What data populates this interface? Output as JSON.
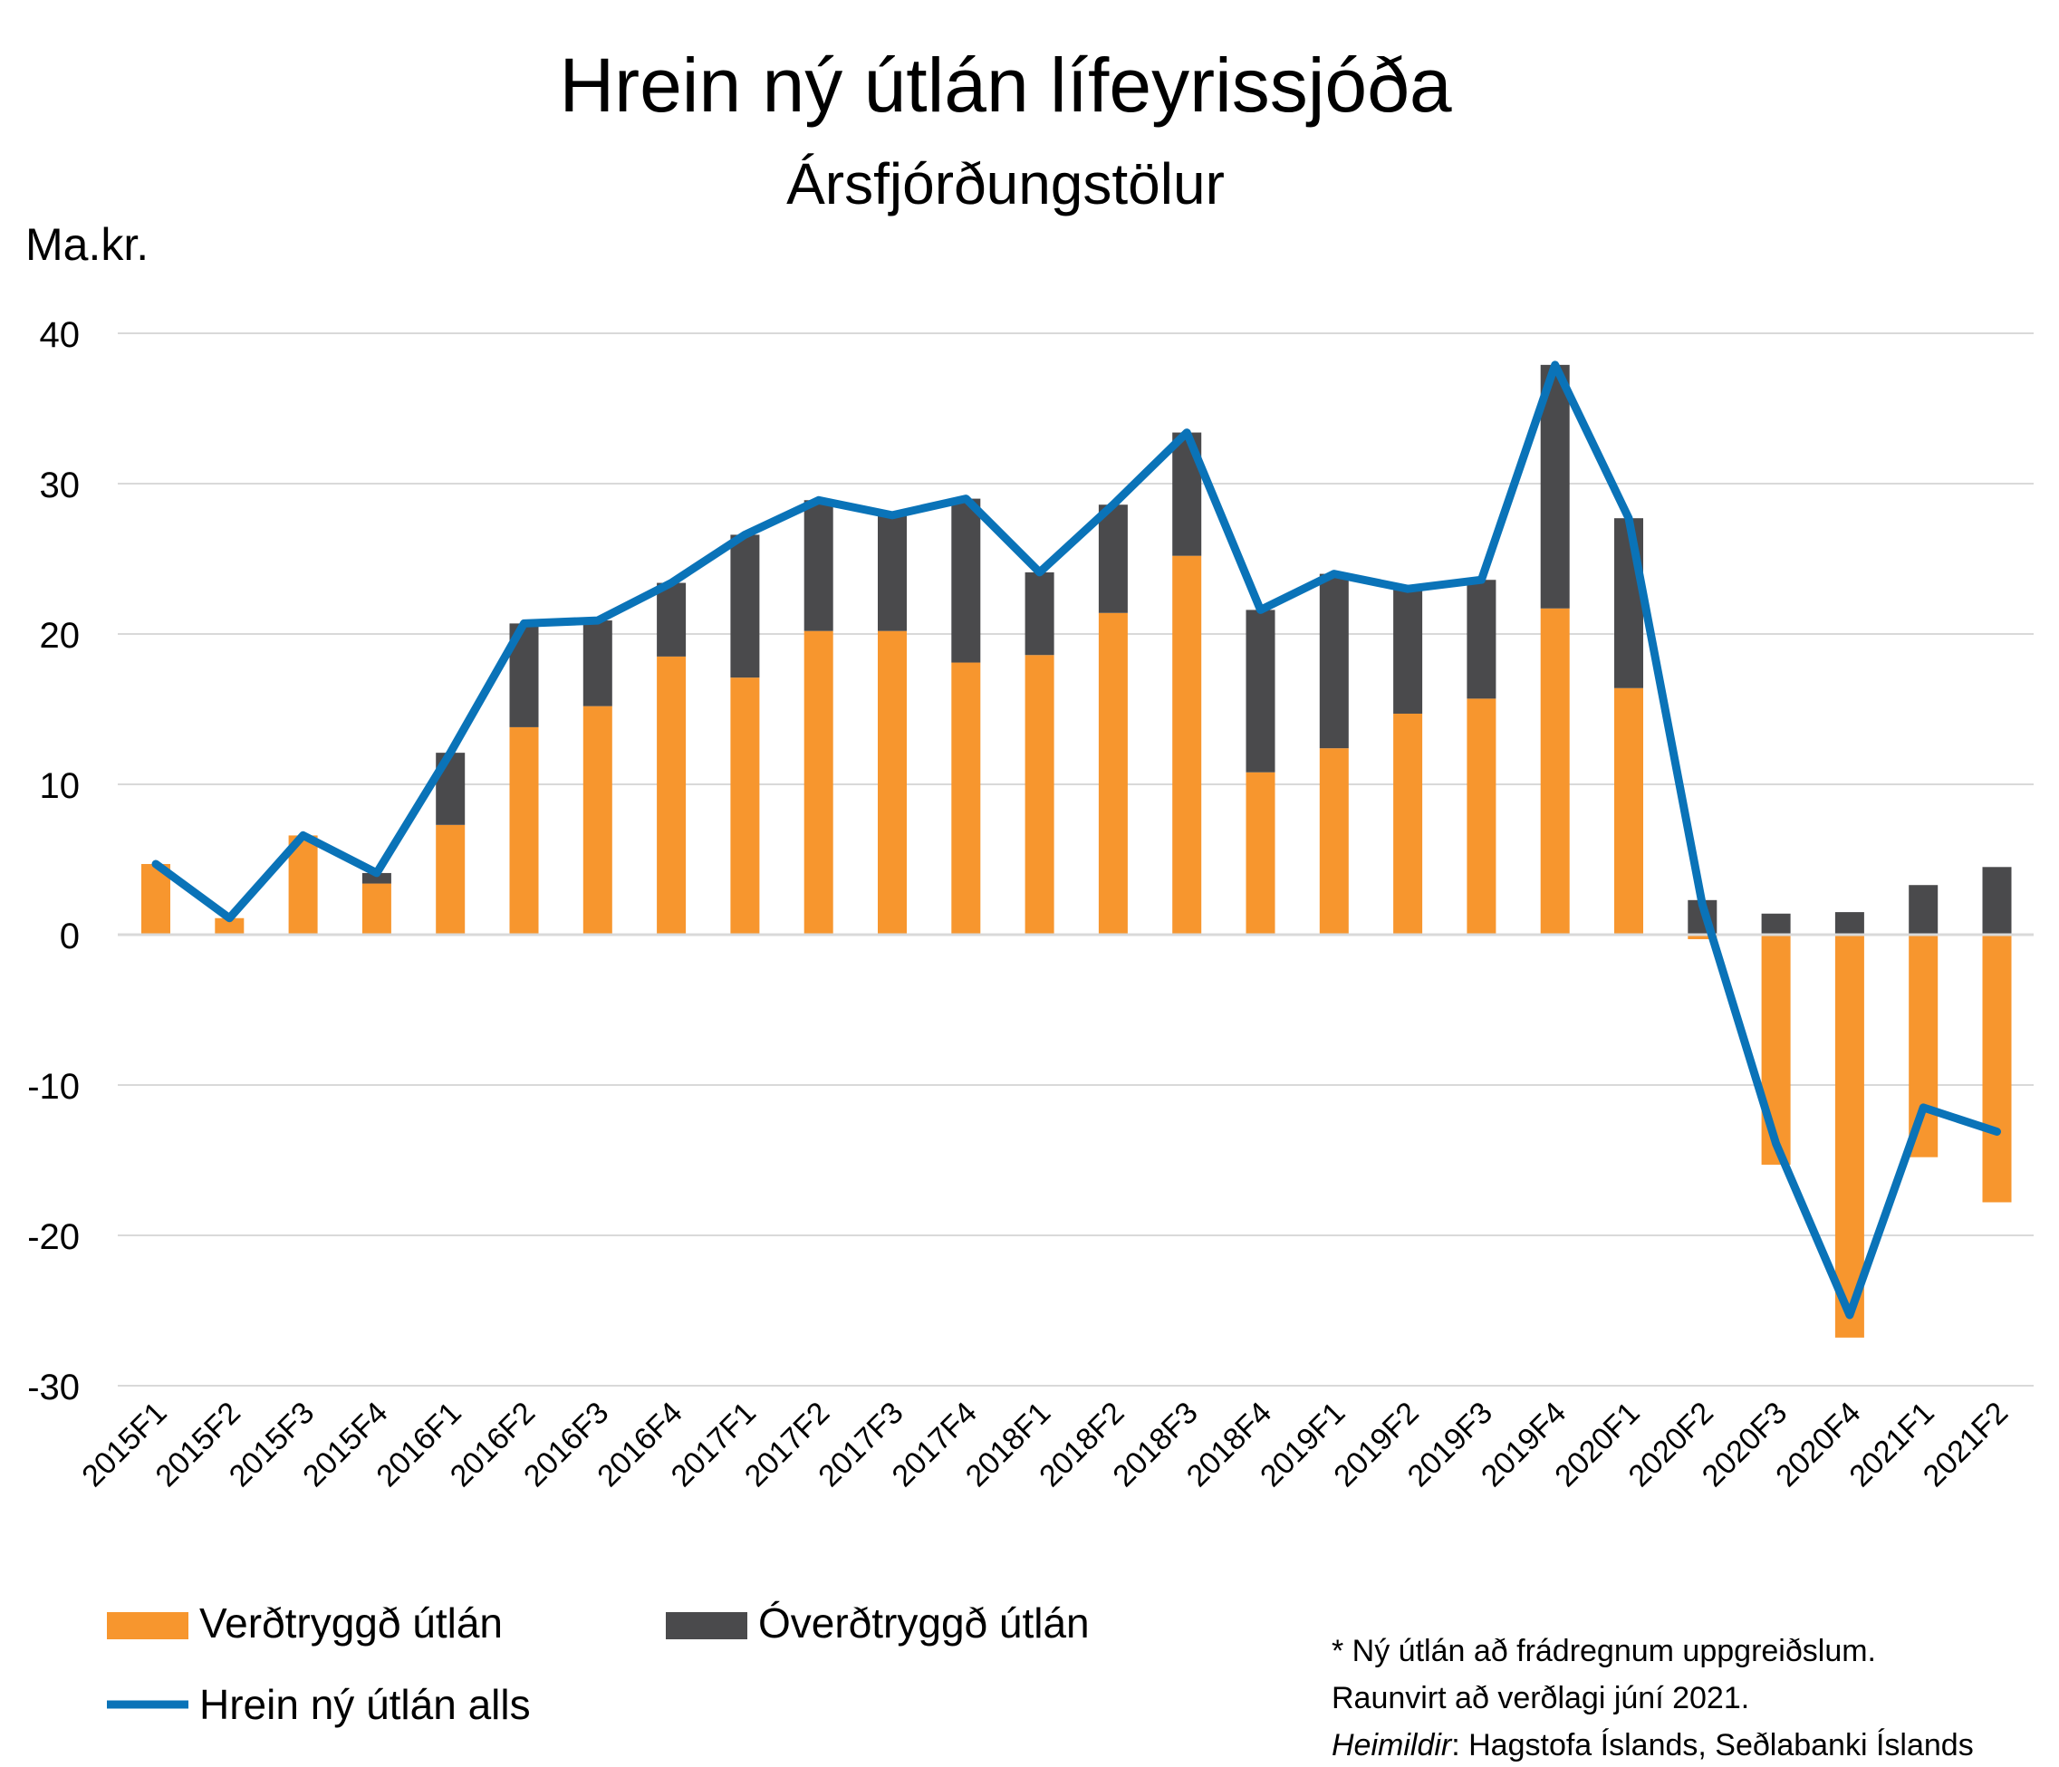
{
  "chart_data": {
    "type": "bar",
    "title": "Hrein ný útlán lífeyrissjóða",
    "subtitle": "Ársfjórðungstölur",
    "ylabel": "Ma.kr.",
    "ylim": [
      -30,
      40
    ],
    "yticks": [
      40,
      30,
      20,
      10,
      0,
      -10,
      -20,
      -30
    ],
    "grid": true,
    "stacked": true,
    "legend_position": "bottom-left",
    "categories": [
      "2015F1",
      "2015F2",
      "2015F3",
      "2015F4",
      "2016F1",
      "2016F2",
      "2016F3",
      "2016F4",
      "2017F1",
      "2017F2",
      "2017F3",
      "2017F4",
      "2018F1",
      "2018F2",
      "2018F3",
      "2018F4",
      "2019F1",
      "2019F2",
      "2019F3",
      "2019F4",
      "2020F1",
      "2020F2",
      "2020F3",
      "2020F4",
      "2021F1",
      "2021F2"
    ],
    "series": [
      {
        "name": "Verðtryggð útlán",
        "kind": "bar",
        "color": "#F7962E",
        "values": [
          4.7,
          1.1,
          6.6,
          3.4,
          7.3,
          13.8,
          15.2,
          18.5,
          17.1,
          20.2,
          20.2,
          18.1,
          18.6,
          21.4,
          25.2,
          10.8,
          12.4,
          14.7,
          15.7,
          21.7,
          16.4,
          -0.3,
          -15.3,
          -26.8,
          -14.8,
          -17.8
        ]
      },
      {
        "name": "Óverðtryggð útlán",
        "kind": "bar",
        "color": "#4A4A4C",
        "values": [
          0.0,
          0.0,
          0.0,
          0.7,
          4.8,
          6.9,
          5.7,
          4.9,
          9.5,
          8.7,
          7.7,
          10.9,
          5.5,
          7.2,
          8.2,
          10.8,
          11.6,
          8.3,
          7.9,
          16.2,
          11.3,
          2.3,
          1.4,
          1.5,
          3.3,
          4.5
        ]
      },
      {
        "name": "Hrein ný útlán alls",
        "kind": "line",
        "color": "#0A73B8",
        "values": [
          4.7,
          1.1,
          6.6,
          4.1,
          12.1,
          20.7,
          20.9,
          23.4,
          26.6,
          28.9,
          27.9,
          29.0,
          24.1,
          28.6,
          33.4,
          21.6,
          24.0,
          23.0,
          23.6,
          37.9,
          27.7,
          2.0,
          -13.9,
          -25.3,
          -11.5,
          -13.1
        ]
      }
    ],
    "notes": [
      {
        "text": "* Ný útlán að frádregnum uppgreiðslum.",
        "italic_prefix": ""
      },
      {
        "text": "Raunvirt að verðlagi júní 2021.",
        "italic_prefix": ""
      },
      {
        "text": "Hagstofa Íslands, Seðlabanki Íslands",
        "italic_prefix": "Heimildir"
      }
    ]
  }
}
